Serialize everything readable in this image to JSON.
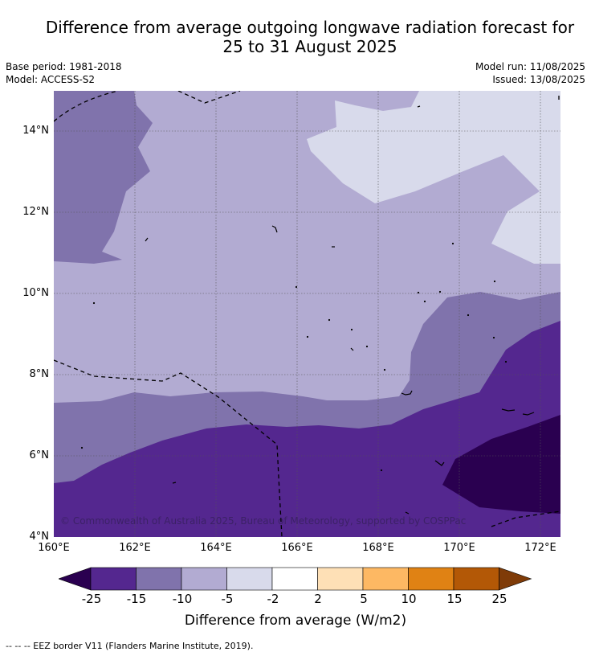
{
  "title_line1": "Difference from average outgoing longwave radiation forecast for",
  "title_line2": "25 to 31 August 2025",
  "base_period": "Base period: 1981-2018",
  "model": "Model: ACCESS-S2",
  "model_run": "Model run: 11/08/2025",
  "issued": "Issued: 13/08/2025",
  "lat_ticks": [
    "14°N",
    "12°N",
    "10°N",
    "8°N",
    "6°N",
    "4°N"
  ],
  "lon_ticks": [
    "160°E",
    "162°E",
    "164°E",
    "166°E",
    "168°E",
    "170°E",
    "172°E"
  ],
  "copyright": "© Commonwealth of Australia 2025, Bureau of Meteorology, supported by COSPPac",
  "colorbar": {
    "ticks": [
      "-25",
      "-15",
      "-10",
      "-5",
      "-2",
      "2",
      "5",
      "10",
      "15",
      "25"
    ],
    "colors": [
      "#2a0050",
      "#54278f",
      "#8073ac",
      "#b2abd2",
      "#d8daeb",
      "#ffffff",
      "#fee0b6",
      "#fdb863",
      "#e08214",
      "#b35806",
      "#7f3b08"
    ],
    "label": "Difference from average (W/m2)"
  },
  "footer": "--  --  -- EEZ border V11 (Flanders Marine Institute, 2019)."
}
